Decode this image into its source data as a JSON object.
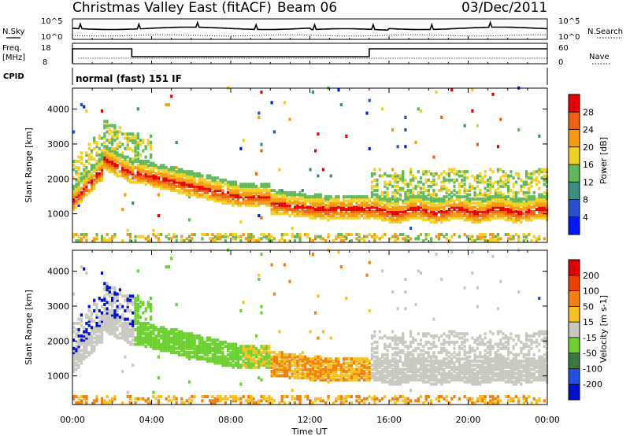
{
  "header": {
    "title": "Christmas Valley East (fitACF)",
    "beam": "Beam 06",
    "date": "03/Dec/2011"
  },
  "panels_top": {
    "nsky_label": "N.Sky",
    "nsearch_label": "N.Search",
    "freq_label_1": "Freq.",
    "freq_label_2": "[MHz]",
    "nave_label": "Nave",
    "cpid_label": "CPID",
    "cpid_text": "normal (fast) 151 IF",
    "noise_ticks_left": [
      "10^5",
      "10^0"
    ],
    "noise_ticks_right": [
      "10^5",
      "10^0"
    ],
    "freq_ticks": [
      "18",
      "8"
    ],
    "nave_ticks": [
      "60",
      "0"
    ]
  },
  "chart_data": [
    {
      "type": "heatmap",
      "name": "power",
      "xlabel": "",
      "ylabel": "Slant Range [km]",
      "x_ticks": [
        "00:00",
        "04:00",
        "08:00",
        "12:00",
        "16:00",
        "20:00",
        "00:00"
      ],
      "y_ticks": [
        1000,
        2000,
        3000,
        4000
      ],
      "ylim": [
        180,
        4600
      ],
      "colorbar": {
        "label": "Power [dB]",
        "ticks": [
          4,
          8,
          12,
          16,
          20,
          24,
          28
        ],
        "colors": [
          "#0018ff",
          "#2a4fd1",
          "#3b8f80",
          "#5fb85a",
          "#f0d020",
          "#f89a10",
          "#f06010",
          "#e80000"
        ]
      }
    },
    {
      "type": "heatmap",
      "name": "velocity",
      "xlabel": "Time UT",
      "ylabel": "Slant Range [km]",
      "x_ticks": [
        "00:00",
        "04:00",
        "08:00",
        "12:00",
        "16:00",
        "20:00",
        "00:00"
      ],
      "y_ticks": [
        1000,
        2000,
        3000,
        4000
      ],
      "ylim": [
        180,
        4600
      ],
      "colorbar": {
        "label": "Velocity [m s-1]",
        "ticks": [
          200,
          100,
          50,
          15,
          -15,
          -50,
          -100,
          -200
        ],
        "colors": [
          "#0010d0",
          "#2050e0",
          "#3a7a40",
          "#6cd030",
          "#c8c8c0",
          "#f8c020",
          "#f08010",
          "#f04000",
          "#e00000"
        ]
      }
    }
  ]
}
